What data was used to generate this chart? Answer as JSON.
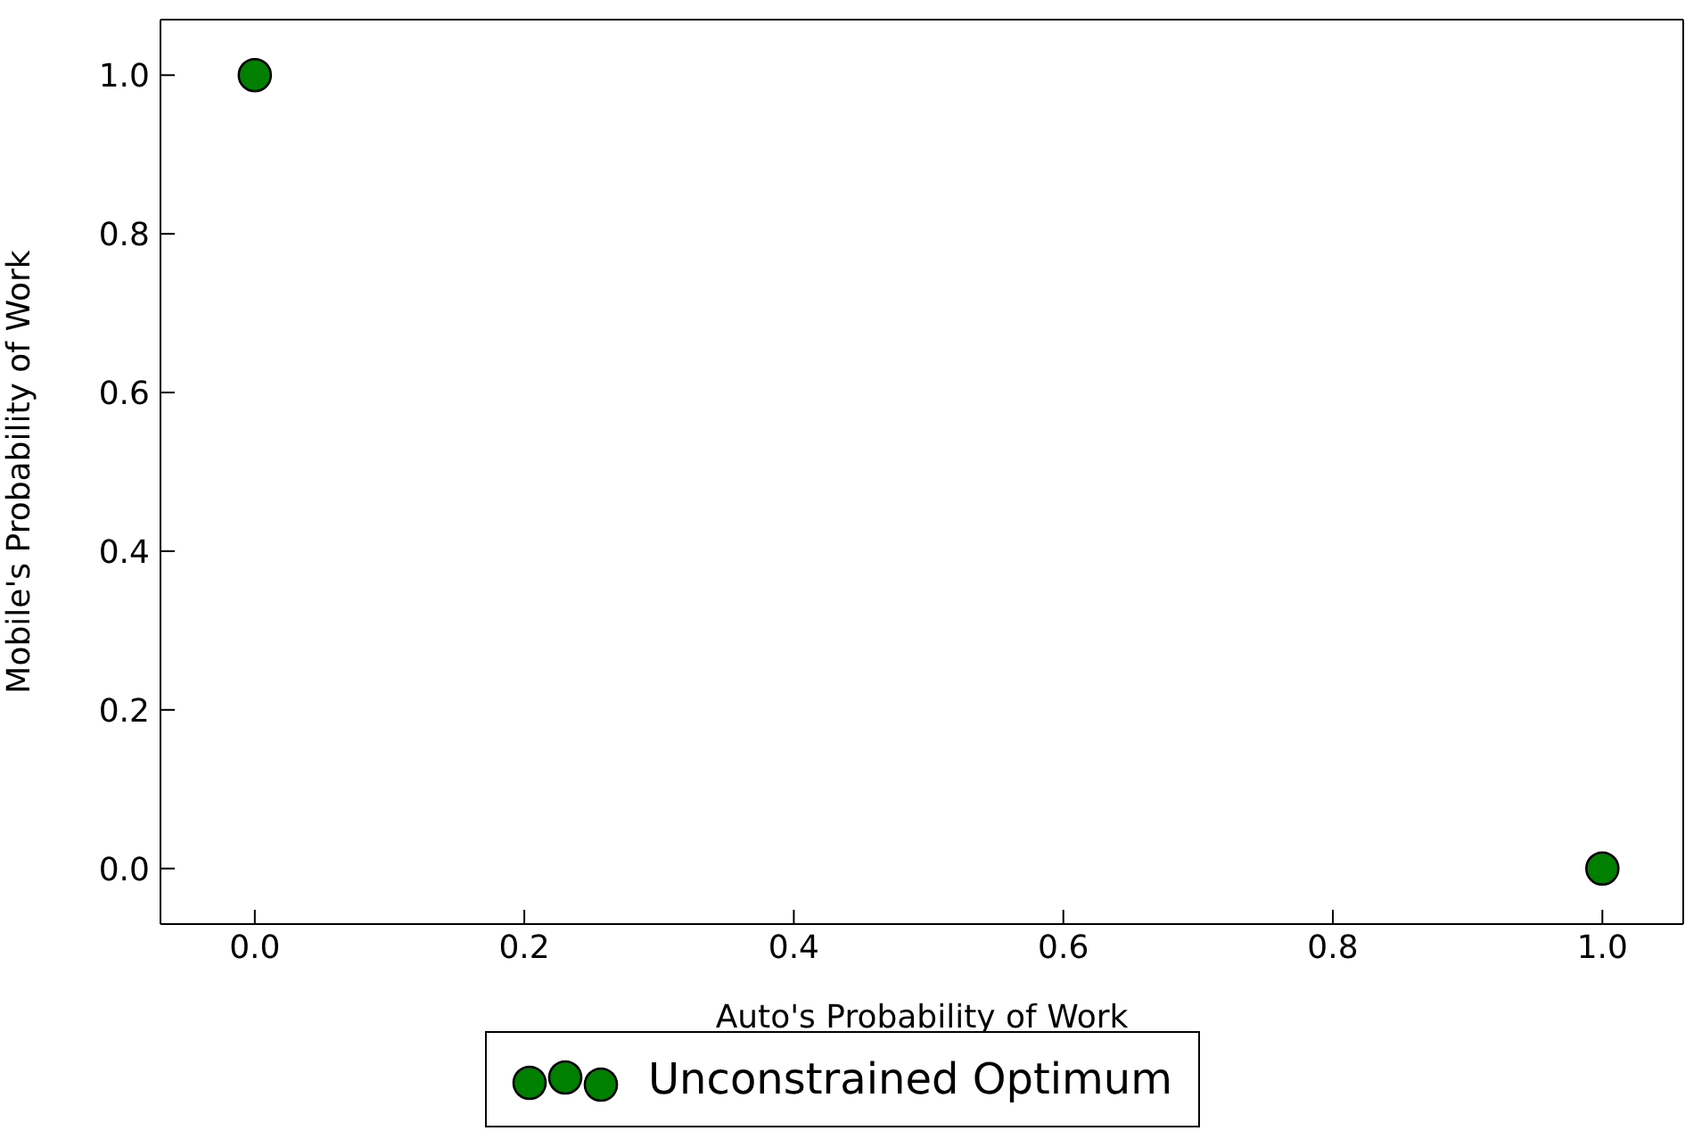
{
  "chart_data": {
    "type": "scatter",
    "xlabel": "Auto's Probability of Work",
    "ylabel": "Mobile's Probability of Work",
    "x": [
      0,
      1
    ],
    "series": [
      {
        "name": "Unconstrained Optimum",
        "color": "#007f00",
        "values": [
          1,
          0
        ]
      }
    ],
    "xlim": [
      -0.07,
      1.06
    ],
    "ylim": [
      -0.07,
      1.07
    ],
    "xticks": [
      {
        "value": 0,
        "label": "0.0"
      },
      {
        "value": 0.2,
        "label": "0.2"
      },
      {
        "value": 0.4,
        "label": "0.4"
      },
      {
        "value": 0.6,
        "label": "0.6"
      },
      {
        "value": 0.8,
        "label": "0.8"
      },
      {
        "value": 1,
        "label": "1.0"
      }
    ],
    "yticks": [
      {
        "value": 0,
        "label": "0.0"
      },
      {
        "value": 0.2,
        "label": "0.2"
      },
      {
        "value": 0.4,
        "label": "0.4"
      },
      {
        "value": 0.6,
        "label": "0.6"
      },
      {
        "value": 0.8,
        "label": "0.8"
      },
      {
        "value": 1,
        "label": "1.0"
      }
    ],
    "grid": false,
    "legend": "bottom",
    "marker": "circle"
  }
}
